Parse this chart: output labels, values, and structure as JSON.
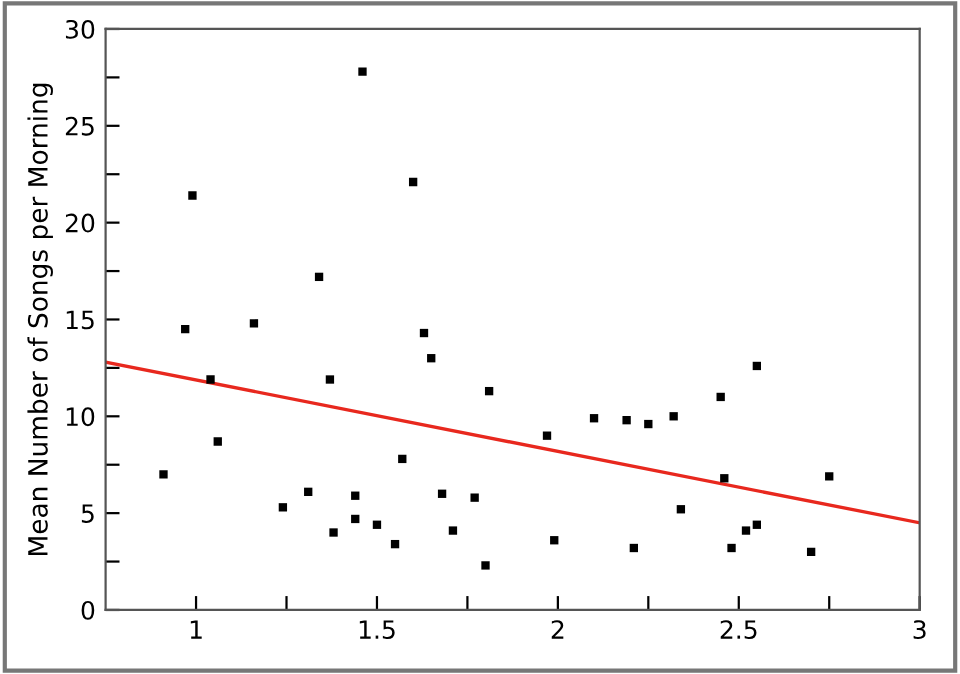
{
  "chart_data": {
    "type": "scatter",
    "ylabel": "Mean Number of Songs per Morning",
    "xlim": [
      0.75,
      3
    ],
    "ylim": [
      0,
      30
    ],
    "xticks": [
      1,
      {
        "value": 1.25,
        "label": null
      },
      1.5,
      {
        "value": 1.75,
        "label": null
      },
      2,
      {
        "value": 2.25,
        "label": null
      },
      2.5,
      {
        "value": 2.75,
        "label": null
      },
      3
    ],
    "yticks": [
      0,
      {
        "value": 2.5,
        "label": null
      },
      5,
      {
        "value": 7.5,
        "label": null
      },
      10,
      {
        "value": 12.5,
        "label": null
      },
      15,
      {
        "value": 17.5,
        "label": null
      },
      20,
      {
        "value": 22.5,
        "label": null
      },
      25,
      {
        "value": 27.5,
        "label": null
      },
      30
    ],
    "grid": false,
    "series": [
      {
        "marker": "square",
        "color": "#000000",
        "x": [
          0.91,
          0.97,
          0.99,
          1.04,
          1.06,
          1.16,
          1.24,
          1.31,
          1.34,
          1.37,
          1.38,
          1.44,
          1.44,
          1.46,
          1.5,
          1.55,
          1.57,
          1.6,
          1.63,
          1.65,
          1.68,
          1.71,
          1.77,
          1.8,
          1.81,
          1.97,
          1.99,
          2.1,
          2.19,
          2.21,
          2.25,
          2.32,
          2.34,
          2.45,
          2.46,
          2.48,
          2.52,
          2.55,
          2.55,
          2.7,
          2.75
        ],
        "values": [
          7.0,
          14.5,
          21.4,
          11.9,
          8.7,
          14.8,
          5.3,
          6.1,
          17.2,
          11.9,
          4.0,
          4.7,
          5.9,
          27.8,
          4.4,
          3.4,
          7.8,
          22.1,
          14.3,
          13.0,
          6.0,
          4.1,
          5.8,
          2.3,
          11.3,
          9.0,
          3.6,
          9.9,
          9.8,
          3.2,
          9.6,
          10.0,
          5.2,
          11.0,
          6.8,
          3.2,
          4.1,
          12.6,
          4.4,
          3.0,
          6.9
        ]
      },
      {
        "type": "line",
        "color": "#e8281e",
        "x": [
          0.75,
          3
        ],
        "values": [
          12.8,
          4.5
        ]
      }
    ]
  }
}
